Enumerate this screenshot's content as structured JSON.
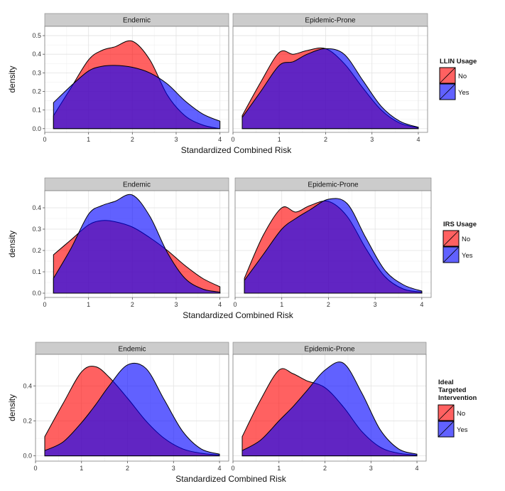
{
  "colors": {
    "no": "#ff0000",
    "yes": "#0000ff",
    "strip": "#cccccc",
    "fill_opacity": 0.62
  },
  "chart_data": [
    {
      "type": "area",
      "title": "",
      "xlabel": "Standardized Combined Risk",
      "ylabel": "density",
      "xlim": [
        0,
        4.2
      ],
      "ylim": [
        -0.02,
        0.55
      ],
      "xticks": [
        "0",
        "1",
        "2",
        "3",
        "4"
      ],
      "yticks": [
        "0.0",
        "0.1",
        "0.2",
        "0.3",
        "0.4",
        "0.5"
      ],
      "grid": true,
      "legend": {
        "title": "LLIN Usage",
        "entries": [
          "No",
          "Yes"
        ],
        "position": "right"
      },
      "x": [
        0.2,
        0.6,
        1.0,
        1.3,
        1.6,
        2.0,
        2.4,
        2.8,
        3.2,
        3.6,
        4.0
      ],
      "panels": [
        {
          "label": "Endemic",
          "series": [
            {
              "name": "No",
              "values": [
                0.07,
                0.22,
                0.37,
                0.42,
                0.44,
                0.47,
                0.37,
                0.18,
                0.07,
                0.02,
                0.0
              ]
            },
            {
              "name": "Yes",
              "values": [
                0.14,
                0.23,
                0.31,
                0.335,
                0.34,
                0.33,
                0.3,
                0.24,
                0.15,
                0.08,
                0.04
              ]
            }
          ]
        },
        {
          "label": "Epidemic-Prone",
          "series": [
            {
              "name": "No",
              "values": [
                0.07,
                0.25,
                0.41,
                0.4,
                0.42,
                0.43,
                0.35,
                0.22,
                0.1,
                0.03,
                0.005
              ]
            },
            {
              "name": "Yes",
              "values": [
                0.06,
                0.2,
                0.34,
                0.36,
                0.4,
                0.43,
                0.4,
                0.26,
                0.12,
                0.04,
                0.007
              ]
            }
          ]
        }
      ]
    },
    {
      "type": "area",
      "title": "",
      "xlabel": "Standardized Combined Risk",
      "ylabel": "density",
      "xlim": [
        0,
        4.2
      ],
      "ylim": [
        -0.02,
        0.48
      ],
      "xticks": [
        "0",
        "1",
        "2",
        "3",
        "4"
      ],
      "yticks": [
        "0.0",
        "0.1",
        "0.2",
        "0.3",
        "0.4"
      ],
      "grid": true,
      "legend": {
        "title": "IRS Usage",
        "entries": [
          "No",
          "Yes"
        ],
        "position": "right"
      },
      "x": [
        0.2,
        0.6,
        1.0,
        1.3,
        1.6,
        2.0,
        2.4,
        2.8,
        3.2,
        3.6,
        4.0
      ],
      "panels": [
        {
          "label": "Endemic",
          "series": [
            {
              "name": "No",
              "values": [
                0.18,
                0.25,
                0.32,
                0.34,
                0.335,
                0.31,
                0.26,
                0.2,
                0.13,
                0.07,
                0.03
              ]
            },
            {
              "name": "Yes",
              "values": [
                0.07,
                0.21,
                0.37,
                0.41,
                0.43,
                0.46,
                0.36,
                0.19,
                0.07,
                0.02,
                0.005
              ]
            }
          ]
        },
        {
          "label": "Epidemic-Prone",
          "series": [
            {
              "name": "No",
              "values": [
                0.07,
                0.27,
                0.4,
                0.38,
                0.41,
                0.43,
                0.36,
                0.21,
                0.08,
                0.02,
                0.005
              ]
            },
            {
              "name": "Yes",
              "values": [
                0.06,
                0.18,
                0.3,
                0.35,
                0.39,
                0.44,
                0.42,
                0.26,
                0.11,
                0.04,
                0.01
              ]
            }
          ]
        }
      ]
    },
    {
      "type": "area",
      "title": "",
      "xlabel": "Standardized Combined Risk",
      "ylabel": "density",
      "xlim": [
        0,
        4.2
      ],
      "ylim": [
        -0.03,
        0.58
      ],
      "xticks": [
        "0",
        "1",
        "2",
        "3",
        "4"
      ],
      "yticks": [
        "0.0",
        "0.2",
        "0.4"
      ],
      "grid": true,
      "legend": {
        "title": "Ideal Targeted Intervention",
        "entries": [
          "No",
          "Yes"
        ],
        "position": "right"
      },
      "x": [
        0.2,
        0.6,
        1.0,
        1.3,
        1.6,
        2.0,
        2.4,
        2.8,
        3.2,
        3.6,
        4.0
      ],
      "panels": [
        {
          "label": "Endemic",
          "series": [
            {
              "name": "No",
              "values": [
                0.11,
                0.3,
                0.48,
                0.51,
                0.45,
                0.33,
                0.2,
                0.1,
                0.04,
                0.015,
                0.005
              ]
            },
            {
              "name": "Yes",
              "values": [
                0.03,
                0.08,
                0.19,
                0.29,
                0.4,
                0.52,
                0.5,
                0.32,
                0.14,
                0.04,
                0.01
              ]
            }
          ]
        },
        {
          "label": "Epidemic-Prone",
          "series": [
            {
              "name": "No",
              "values": [
                0.11,
                0.32,
                0.49,
                0.47,
                0.43,
                0.39,
                0.28,
                0.14,
                0.05,
                0.015,
                0.005
              ]
            },
            {
              "name": "Yes",
              "values": [
                0.03,
                0.09,
                0.2,
                0.28,
                0.37,
                0.49,
                0.53,
                0.36,
                0.15,
                0.04,
                0.01
              ]
            }
          ]
        }
      ]
    }
  ]
}
